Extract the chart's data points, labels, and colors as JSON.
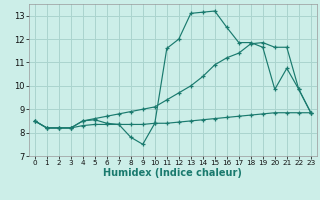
{
  "xlabel": "Humidex (Indice chaleur)",
  "bg_color": "#cceee8",
  "grid_color": "#aad4ce",
  "line_color": "#1a7a6e",
  "xlim": [
    -0.5,
    23.5
  ],
  "ylim": [
    7,
    13.5
  ],
  "yticks": [
    7,
    8,
    9,
    10,
    11,
    12,
    13
  ],
  "xticks": [
    0,
    1,
    2,
    3,
    4,
    5,
    6,
    7,
    8,
    9,
    10,
    11,
    12,
    13,
    14,
    15,
    16,
    17,
    18,
    19,
    20,
    21,
    22,
    23
  ],
  "curve1_x": [
    0,
    1,
    2,
    3,
    4,
    5,
    6,
    7,
    8,
    9,
    10,
    11,
    12,
    13,
    14,
    15,
    16,
    17,
    18,
    19,
    20,
    21,
    22,
    23
  ],
  "curve1_y": [
    8.5,
    8.2,
    8.2,
    8.2,
    8.3,
    8.35,
    8.35,
    8.35,
    8.35,
    8.35,
    8.4,
    8.4,
    8.45,
    8.5,
    8.55,
    8.6,
    8.65,
    8.7,
    8.75,
    8.8,
    8.85,
    8.85,
    8.85,
    8.85
  ],
  "curve2_x": [
    0,
    1,
    2,
    3,
    4,
    5,
    6,
    7,
    8,
    9,
    10,
    11,
    12,
    13,
    14,
    15,
    16,
    17,
    18,
    19,
    20,
    21,
    22,
    23
  ],
  "curve2_y": [
    8.5,
    8.2,
    8.2,
    8.2,
    8.5,
    8.55,
    8.4,
    8.35,
    7.8,
    7.5,
    8.4,
    11.6,
    12.0,
    13.1,
    13.15,
    13.2,
    12.5,
    11.85,
    11.85,
    11.65,
    9.85,
    10.75,
    9.85,
    8.85
  ],
  "curve3_x": [
    0,
    1,
    2,
    3,
    4,
    5,
    6,
    7,
    8,
    9,
    10,
    11,
    12,
    13,
    14,
    15,
    16,
    17,
    18,
    19,
    20,
    21,
    22,
    23
  ],
  "curve3_y": [
    8.5,
    8.2,
    8.2,
    8.2,
    8.5,
    8.6,
    8.7,
    8.8,
    8.9,
    9.0,
    9.1,
    9.4,
    9.7,
    10.0,
    10.4,
    10.9,
    11.2,
    11.4,
    11.8,
    11.85,
    11.65,
    11.65,
    9.85,
    8.85
  ]
}
